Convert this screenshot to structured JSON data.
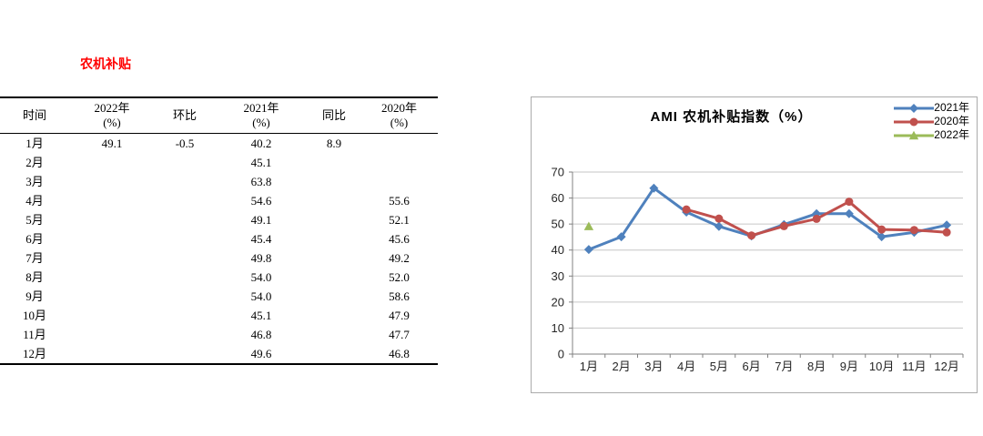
{
  "table_section": {
    "title": "农机补贴",
    "title_color": "#ff0000",
    "columns": [
      {
        "label": "时间",
        "sub": ""
      },
      {
        "label": "2022年",
        "sub": "(%)"
      },
      {
        "label": "环比",
        "sub": ""
      },
      {
        "label": "2021年",
        "sub": "(%)"
      },
      {
        "label": "同比",
        "sub": ""
      },
      {
        "label": "2020年",
        "sub": "(%)"
      }
    ],
    "rows": [
      [
        "1月",
        "49.1",
        "-0.5",
        "40.2",
        "8.9",
        ""
      ],
      [
        "2月",
        "",
        "",
        "45.1",
        "",
        ""
      ],
      [
        "3月",
        "",
        "",
        "63.8",
        "",
        ""
      ],
      [
        "4月",
        "",
        "",
        "54.6",
        "",
        "55.6"
      ],
      [
        "5月",
        "",
        "",
        "49.1",
        "",
        "52.1"
      ],
      [
        "6月",
        "",
        "",
        "45.4",
        "",
        "45.6"
      ],
      [
        "7月",
        "",
        "",
        "49.8",
        "",
        "49.2"
      ],
      [
        "8月",
        "",
        "",
        "54.0",
        "",
        "52.0"
      ],
      [
        "9月",
        "",
        "",
        "54.0",
        "",
        "58.6"
      ],
      [
        "10月",
        "",
        "",
        "45.1",
        "",
        "47.9"
      ],
      [
        "11月",
        "",
        "",
        "46.8",
        "",
        "47.7"
      ],
      [
        "12月",
        "",
        "",
        "49.6",
        "",
        "46.8"
      ]
    ]
  },
  "chart_data": {
    "type": "line",
    "title": "AMI 农机补贴指数（%）",
    "categories": [
      "1月",
      "2月",
      "3月",
      "4月",
      "5月",
      "6月",
      "7月",
      "8月",
      "9月",
      "10月",
      "11月",
      "12月"
    ],
    "series": [
      {
        "name": "2021年",
        "color": "#4F81BD",
        "marker": "diamond",
        "values": [
          40.2,
          45.1,
          63.8,
          54.6,
          49.1,
          45.4,
          49.8,
          54.0,
          54.0,
          45.1,
          46.8,
          49.6
        ]
      },
      {
        "name": "2020年",
        "color": "#C0504D",
        "marker": "circle",
        "values": [
          null,
          null,
          null,
          55.6,
          52.1,
          45.6,
          49.2,
          52.0,
          58.6,
          47.9,
          47.7,
          46.8
        ]
      },
      {
        "name": "2022年",
        "color": "#9BBB59",
        "marker": "triangle",
        "values": [
          49.1,
          null,
          null,
          null,
          null,
          null,
          null,
          null,
          null,
          null,
          null,
          null
        ]
      }
    ],
    "ylim": [
      0,
      70
    ],
    "ytick_step": 10,
    "yticks": [
      "0",
      "10",
      "20",
      "30",
      "40",
      "50",
      "60",
      "70"
    ],
    "grid": true,
    "legend_position": "top-right",
    "colors": {
      "grid": "#c6c6c6",
      "axis": "#808080",
      "tick_label": "#262626",
      "border": "#ababab"
    }
  }
}
